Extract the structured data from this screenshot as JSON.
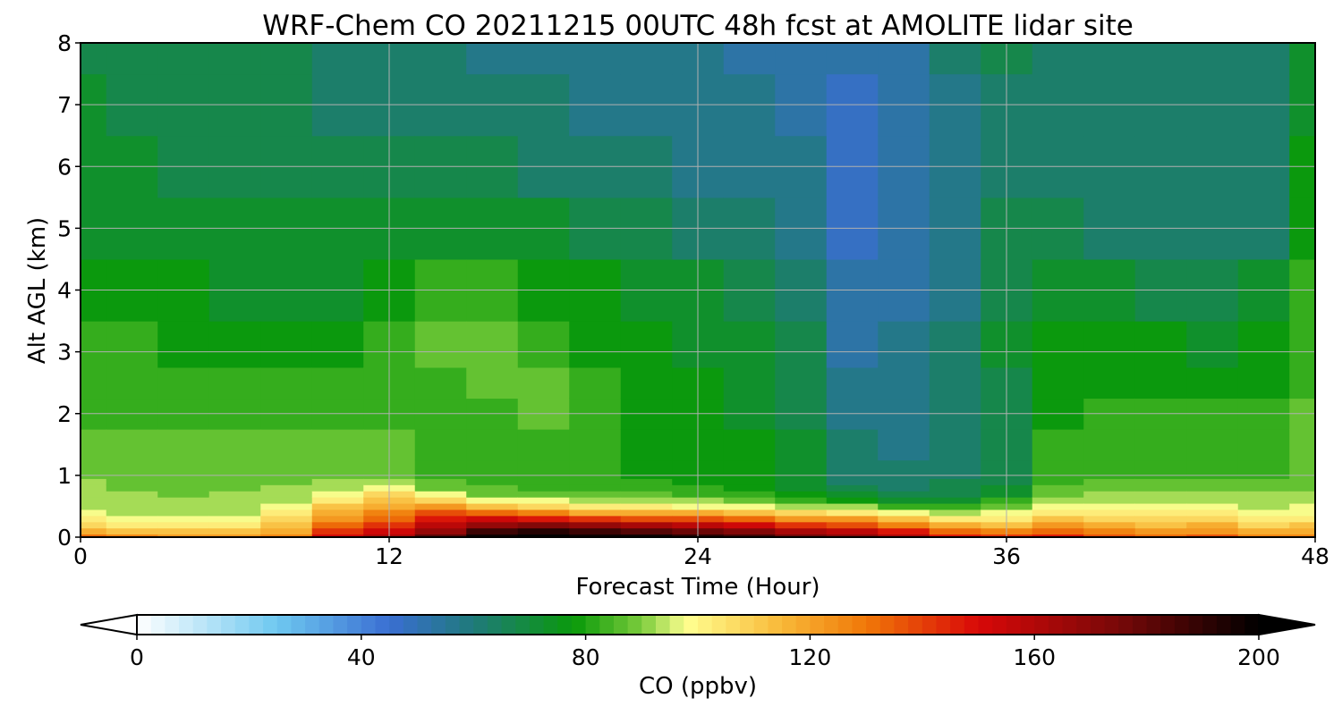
{
  "chart_data": {
    "type": "heatmap",
    "title": "WRF-Chem CO  20211215 00UTC 48h fcst at AMOLITE lidar site",
    "xlabel": "Forecast Time (Hour)",
    "ylabel": "Alt AGL (km)",
    "xlim": [
      0,
      48
    ],
    "ylim": [
      0,
      8
    ],
    "xticks": [
      "0",
      "12",
      "24",
      "36",
      "48"
    ],
    "yticks": [
      "0",
      "1",
      "2",
      "3",
      "4",
      "5",
      "6",
      "7",
      "8"
    ],
    "grid": true,
    "colorbar": {
      "label": "CO  (ppbv)",
      "range": [
        0,
        200
      ],
      "ticks": [
        "0",
        "40",
        "80",
        "120",
        "160",
        "200"
      ],
      "extend": "both",
      "colors": [
        [
          0,
          "#ffffff"
        ],
        [
          25,
          "#6ec8f0"
        ],
        [
          45,
          "#3a6ed2"
        ],
        [
          60,
          "#1f7a7a"
        ],
        [
          78,
          "#0a9a0a"
        ],
        [
          90,
          "#7ccc3c"
        ],
        [
          98,
          "#ffff90"
        ],
        [
          115,
          "#f8b838"
        ],
        [
          130,
          "#f07808"
        ],
        [
          150,
          "#d80808"
        ],
        [
          175,
          "#780808"
        ],
        [
          200,
          "#000000"
        ]
      ]
    },
    "times_hours": [
      0,
      2,
      4,
      6,
      8,
      10,
      12,
      14,
      16,
      18,
      20,
      22,
      24,
      26,
      28,
      30,
      32,
      34,
      36,
      38,
      40,
      42,
      44,
      46,
      48
    ],
    "altitudes_km": [
      0,
      0.1,
      0.2,
      0.3,
      0.4,
      0.5,
      0.6,
      0.7,
      0.8,
      0.9,
      1.0,
      1.5,
      2,
      2.5,
      3,
      4,
      5,
      6,
      7,
      8
    ],
    "profiles_ppbv": [
      [
        130,
        118,
        108,
        100,
        96,
        94,
        93,
        92,
        91,
        90,
        89,
        86,
        84,
        84,
        82,
        77,
        74,
        72,
        70,
        68
      ],
      [
        125,
        112,
        103,
        97,
        94,
        92,
        91,
        90,
        89,
        88,
        87,
        85,
        84,
        83,
        80,
        76,
        73,
        70,
        68,
        68
      ],
      [
        122,
        110,
        102,
        96,
        93,
        91,
        90,
        89,
        88,
        87,
        86,
        85,
        84,
        82,
        79,
        75,
        72,
        69,
        66,
        66
      ],
      [
        120,
        110,
        103,
        97,
        94,
        92,
        91,
        90,
        89,
        88,
        87,
        85,
        83,
        81,
        78,
        74,
        71,
        68,
        66,
        66
      ],
      [
        125,
        118,
        112,
        106,
        100,
        96,
        93,
        91,
        90,
        89,
        88,
        86,
        84,
        82,
        79,
        74,
        70,
        67,
        66,
        66
      ],
      [
        150,
        140,
        130,
        120,
        115,
        110,
        104,
        98,
        93,
        90,
        88,
        86,
        84,
        82,
        79,
        74,
        70,
        66,
        64,
        63
      ],
      [
        160,
        150,
        140,
        130,
        125,
        118,
        112,
        105,
        97,
        91,
        88,
        86,
        84,
        82,
        80,
        78,
        72,
        66,
        62,
        60
      ],
      [
        180,
        165,
        155,
        145,
        135,
        122,
        108,
        96,
        89,
        86,
        84,
        82,
        82,
        84,
        86,
        82,
        74,
        66,
        62,
        60
      ],
      [
        198,
        185,
        168,
        150,
        130,
        112,
        98,
        89,
        85,
        83,
        82,
        82,
        84,
        87,
        86,
        80,
        72,
        65,
        61,
        58
      ],
      [
        200,
        190,
        170,
        148,
        125,
        108,
        96,
        88,
        84,
        83,
        82,
        84,
        86,
        86,
        83,
        78,
        70,
        63,
        60,
        58
      ],
      [
        198,
        185,
        165,
        140,
        118,
        100,
        92,
        86,
        83,
        81,
        80,
        80,
        81,
        80,
        79,
        76,
        68,
        62,
        58,
        57
      ],
      [
        196,
        180,
        160,
        138,
        118,
        100,
        91,
        85,
        82,
        80,
        79,
        78,
        78,
        77,
        76,
        73,
        66,
        60,
        57,
        56
      ],
      [
        194,
        178,
        158,
        136,
        116,
        99,
        90,
        84,
        80,
        79,
        78,
        77,
        76,
        75,
        74,
        70,
        64,
        59,
        56,
        55
      ],
      [
        185,
        170,
        150,
        130,
        112,
        97,
        88,
        82,
        78,
        77,
        76,
        75,
        74,
        72,
        70,
        66,
        61,
        57,
        55,
        54
      ],
      [
        175,
        160,
        142,
        124,
        108,
        94,
        84,
        78,
        74,
        72,
        71,
        70,
        69,
        68,
        66,
        62,
        58,
        55,
        54,
        53
      ],
      [
        170,
        155,
        138,
        120,
        104,
        90,
        78,
        70,
        66,
        64,
        62,
        60,
        58,
        55,
        53,
        50,
        48,
        47,
        48,
        50
      ],
      [
        160,
        145,
        128,
        112,
        98,
        84,
        72,
        66,
        63,
        62,
        61,
        59,
        57,
        56,
        55,
        53,
        51,
        50,
        51,
        53
      ],
      [
        145,
        130,
        116,
        104,
        94,
        84,
        74,
        68,
        66,
        65,
        64,
        62,
        61,
        60,
        60,
        59,
        58,
        57,
        58,
        60
      ],
      [
        140,
        126,
        114,
        104,
        96,
        88,
        80,
        74,
        70,
        69,
        68,
        67,
        68,
        69,
        70,
        68,
        65,
        62,
        64,
        66
      ],
      [
        145,
        132,
        120,
        110,
        102,
        96,
        91,
        88,
        85,
        83,
        82,
        80,
        79,
        78,
        76,
        72,
        66,
        62,
        61,
        60
      ],
      [
        135,
        125,
        116,
        108,
        101,
        96,
        93,
        90,
        87,
        85,
        84,
        82,
        81,
        79,
        76,
        70,
        64,
        61,
        60,
        60
      ],
      [
        132,
        122,
        114,
        106,
        100,
        96,
        93,
        90,
        87,
        85,
        84,
        82,
        80,
        78,
        75,
        69,
        63,
        60,
        60,
        60
      ],
      [
        135,
        124,
        115,
        107,
        101,
        96,
        93,
        90,
        87,
        85,
        84,
        82,
        80,
        78,
        74,
        68,
        63,
        60,
        60,
        61
      ],
      [
        125,
        115,
        108,
        102,
        97,
        94,
        92,
        90,
        88,
        86,
        84,
        82,
        80,
        79,
        76,
        70,
        64,
        61,
        61,
        62
      ],
      [
        128,
        118,
        110,
        104,
        99,
        96,
        93,
        91,
        89,
        88,
        87,
        86,
        85,
        84,
        82,
        80,
        78,
        76,
        74,
        72
      ]
    ]
  }
}
